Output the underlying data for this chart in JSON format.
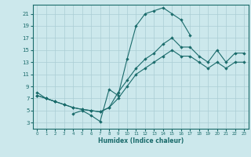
{
  "xlabel": "Humidex (Indice chaleur)",
  "bg_color": "#cce8ec",
  "grid_color": "#aacdd4",
  "line_color": "#1a6b6b",
  "xlim": [
    -0.5,
    23.5
  ],
  "ylim": [
    2,
    22.5
  ],
  "xticks": [
    0,
    1,
    2,
    3,
    4,
    5,
    6,
    7,
    8,
    9,
    10,
    11,
    12,
    13,
    14,
    15,
    16,
    17,
    18,
    19,
    20,
    21,
    22,
    23
  ],
  "yticks": [
    3,
    5,
    7,
    9,
    11,
    13,
    15,
    17,
    19,
    21
  ],
  "hours": [
    0,
    1,
    2,
    3,
    4,
    5,
    6,
    7,
    8,
    9,
    10,
    11,
    12,
    13,
    14,
    15,
    16,
    17,
    18,
    19,
    20,
    21,
    22,
    23
  ],
  "line_jagged": [
    8,
    7,
    6.5,
    null,
    4.5,
    5.0,
    4.2,
    3.2,
    8.5,
    7.5,
    13.5,
    19,
    21,
    21.5,
    22,
    21,
    20,
    17.5,
    null,
    null,
    null,
    null,
    null,
    null
  ],
  "line_upper": [
    7.5,
    7,
    6.5,
    6,
    5.5,
    5.2,
    5.0,
    4.8,
    5.5,
    8,
    10,
    12,
    13.5,
    14.5,
    16,
    17,
    15.5,
    15.5,
    14,
    13,
    15,
    13,
    14.5,
    14.5
  ],
  "line_lower": [
    7.5,
    7,
    6.5,
    6,
    5.5,
    5.2,
    5.0,
    4.8,
    5.5,
    7,
    9,
    11,
    12,
    13,
    14,
    15,
    14,
    14,
    13,
    12,
    13,
    12,
    13,
    13
  ]
}
